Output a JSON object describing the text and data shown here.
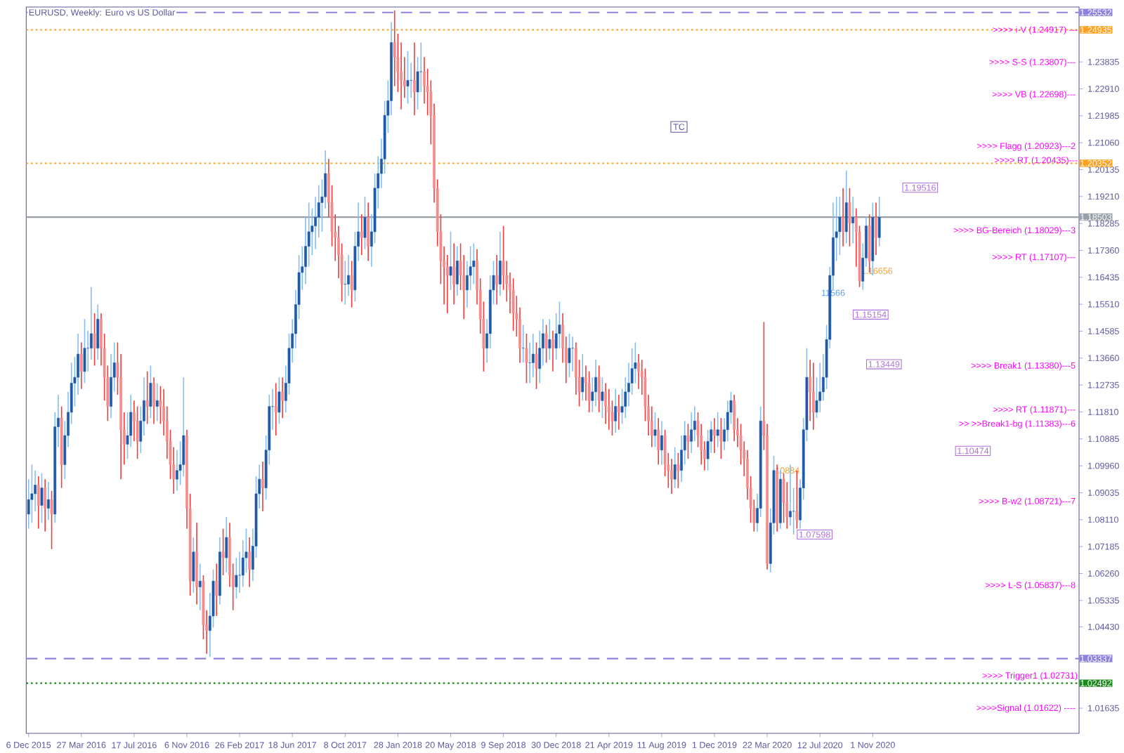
{
  "chart_data": {
    "type": "candlestick",
    "title": "EURUSD, Weekly:  Euro vs US Dollar",
    "xlim": [
      "2015-12-01",
      "2022-01-13"
    ],
    "ylim": [
      1.0077,
      1.2572
    ],
    "xticks": [
      {
        "value": "2015-12-06",
        "label": "6 Dec 2015"
      },
      {
        "value": "2016-03-27",
        "label": "27 Mar 2016"
      },
      {
        "value": "2016-07-17",
        "label": "17 Jul 2016"
      },
      {
        "value": "2016-11-06",
        "label": "6 Nov 2016"
      },
      {
        "value": "2017-02-26",
        "label": "26 Feb 2017"
      },
      {
        "value": "2017-06-18",
        "label": "18 Jun 2017"
      },
      {
        "value": "2017-10-08",
        "label": "8 Oct 2017"
      },
      {
        "value": "2018-01-28",
        "label": "28 Jan 2018"
      },
      {
        "value": "2018-05-20",
        "label": "20 May 2018"
      },
      {
        "value": "2018-09-09",
        "label": "9 Sep 2018"
      },
      {
        "value": "2018-12-30",
        "label": "30 Dec 2018"
      },
      {
        "value": "2019-04-21",
        "label": "21 Apr 2019"
      },
      {
        "value": "2019-08-11",
        "label": "11 Aug 2019"
      },
      {
        "value": "2019-12-01",
        "label": "1 Dec 2019"
      },
      {
        "value": "2020-03-22",
        "label": "22 Mar 2020"
      },
      {
        "value": "2020-07-12",
        "label": "12 Jul 2020"
      },
      {
        "value": "2020-11-01",
        "label": "1 Nov 2020"
      }
    ],
    "yticks": [
      {
        "value": 1.01635,
        "label": "1.01635"
      },
      {
        "value": 1.0443,
        "label": "1.04430"
      },
      {
        "value": 1.05335,
        "label": "1.05335"
      },
      {
        "value": 1.0626,
        "label": "1.06260"
      },
      {
        "value": 1.07185,
        "label": "1.07185"
      },
      {
        "value": 1.0811,
        "label": "1.08110"
      },
      {
        "value": 1.09035,
        "label": "1.09035"
      },
      {
        "value": 1.0996,
        "label": "1.09960"
      },
      {
        "value": 1.10885,
        "label": "1.10885"
      },
      {
        "value": 1.1181,
        "label": "1.11810"
      },
      {
        "value": 1.12735,
        "label": "1.12735"
      },
      {
        "value": 1.1366,
        "label": "1.13660"
      },
      {
        "value": 1.14585,
        "label": "1.14585"
      },
      {
        "value": 1.1551,
        "label": "1.15510"
      },
      {
        "value": 1.16435,
        "label": "1.16435"
      },
      {
        "value": 1.1736,
        "label": "1.17360"
      },
      {
        "value": 1.18285,
        "label": "1.18285"
      },
      {
        "value": 1.1921,
        "label": "1.19210"
      },
      {
        "value": 1.20135,
        "label": "1.20135"
      },
      {
        "value": 1.2106,
        "label": "1.21060"
      },
      {
        "value": 1.21985,
        "label": "1.21985"
      },
      {
        "value": 1.2291,
        "label": "1.22910"
      },
      {
        "value": 1.23835,
        "label": "1.23835"
      }
    ],
    "ref_lines": [
      {
        "axis": "y",
        "value": 1.25532,
        "label": "1.25532",
        "color": "#8c82dc",
        "line_style": "dashed"
      },
      {
        "axis": "y",
        "value": 1.24935,
        "label": "1.24935",
        "color": "#ffa020",
        "line_style": "dotted"
      },
      {
        "axis": "y",
        "value": 1.20352,
        "label": "1.20352",
        "color": "#ffa020",
        "line_style": "dotted"
      },
      {
        "axis": "y",
        "value": 1.18503,
        "label": "1.18503",
        "color": "#98a0a8",
        "line_style": "solid"
      },
      {
        "axis": "y",
        "value": 1.03337,
        "label": "1.03337",
        "color": "#8c82dc",
        "line_style": "dashed"
      },
      {
        "axis": "y",
        "value": 1.02492,
        "label": "1.02492",
        "color": "#1a8a1a",
        "line_style": "dotted"
      }
    ],
    "annotations": [
      "TC",
      {
        "text": ">>>> i-V (1.24917) ---",
        "y": 1.24917
      },
      ">>>> S-S (1.23807)---",
      ">>>> VB (1.22698)---",
      ">>>> Flagg (1.20923)---2",
      ">>>> BG-Bereich (1.18029)---3",
      ">>>> RT (1.17107)---",
      ">>>> Break1 (1.13380)---5",
      ">>>> RT (1.11871)---",
      ">> >>Break1-bg (1.11383)---6",
      ">>>> B-w2 (1.08721)---7",
      ">>>> L-S (1.05837)---8",
      ">>>>Signal (1.01622) ----",
      "1.19516",
      "1.15154",
      "1.10474",
      "1.07598",
      "1.13449",
      "11566",
      {
        "text": ">>>> RT (1.20435)---",
        "y": 1.20435
      },
      {
        "text": ">>>> Trigger1 (1.02731)",
        "y": 1.02731
      },
      {
        "text": "1.16656",
        "x": "2020-10-04",
        "y": 1.16656
      },
      {
        "text": "10884",
        "x": "2020-04-05",
        "y": 1.098
      }
    ],
    "x": [
      "2015-12-06",
      "2015-12-13",
      "2015-12-20",
      "2015-12-27",
      "2016-01-03",
      "2016-01-10",
      "2016-01-17",
      "2016-01-24",
      "2016-01-31",
      "2016-02-07",
      "2016-02-14",
      "2016-02-21",
      "2016-02-28",
      "2016-03-06",
      "2016-03-13",
      "2016-03-20",
      "2016-03-27",
      "2016-04-03",
      "2016-04-10",
      "2016-04-17",
      "2016-04-24",
      "2016-05-01",
      "2016-05-08",
      "2016-05-15",
      "2016-05-22",
      "2016-05-29",
      "2016-06-05",
      "2016-06-12",
      "2016-06-19",
      "2016-06-26",
      "2016-07-03",
      "2016-07-10",
      "2016-07-17",
      "2016-07-24",
      "2016-07-31",
      "2016-08-07",
      "2016-08-14",
      "2016-08-21",
      "2016-08-28",
      "2016-09-04",
      "2016-09-11",
      "2016-09-18",
      "2016-09-25",
      "2016-10-02",
      "2016-10-09",
      "2016-10-16",
      "2016-10-23",
      "2016-10-30",
      "2016-11-06",
      "2016-11-13",
      "2016-11-20",
      "2016-11-27",
      "2016-12-04",
      "2016-12-11",
      "2016-12-18",
      "2016-12-25",
      "2017-01-01",
      "2017-01-08",
      "2017-01-15",
      "2017-01-22",
      "2017-01-29",
      "2017-02-05",
      "2017-02-12",
      "2017-02-19",
      "2017-02-26",
      "2017-03-05",
      "2017-03-12",
      "2017-03-19",
      "2017-03-26",
      "2017-04-02",
      "2017-04-09",
      "2017-04-16",
      "2017-04-23",
      "2017-04-30",
      "2017-05-07",
      "2017-05-14",
      "2017-05-21",
      "2017-05-28",
      "2017-06-04",
      "2017-06-11",
      "2017-06-18",
      "2017-06-25",
      "2017-07-02",
      "2017-07-09",
      "2017-07-16",
      "2017-07-23",
      "2017-07-30",
      "2017-08-06",
      "2017-08-13",
      "2017-08-20",
      "2017-08-27",
      "2017-09-03",
      "2017-09-10",
      "2017-09-17",
      "2017-09-24",
      "2017-10-01",
      "2017-10-08",
      "2017-10-15",
      "2017-10-22",
      "2017-10-29",
      "2017-11-05",
      "2017-11-12",
      "2017-11-19",
      "2017-11-26",
      "2017-12-03",
      "2017-12-10",
      "2017-12-17",
      "2017-12-24",
      "2017-12-31",
      "2018-01-07",
      "2018-01-14",
      "2018-01-21",
      "2018-01-28",
      "2018-02-04",
      "2018-02-11",
      "2018-02-18",
      "2018-02-25",
      "2018-03-04",
      "2018-03-11",
      "2018-03-18",
      "2018-03-25",
      "2018-04-01",
      "2018-04-08",
      "2018-04-15",
      "2018-04-22",
      "2018-04-29",
      "2018-05-06",
      "2018-05-13",
      "2018-05-20",
      "2018-05-27",
      "2018-06-03",
      "2018-06-10",
      "2018-06-17",
      "2018-06-24",
      "2018-07-01",
      "2018-07-08",
      "2018-07-15",
      "2018-07-22",
      "2018-07-29",
      "2018-08-05",
      "2018-08-12",
      "2018-08-19",
      "2018-08-26",
      "2018-09-02",
      "2018-09-09",
      "2018-09-16",
      "2018-09-23",
      "2018-09-30",
      "2018-10-07",
      "2018-10-14",
      "2018-10-21",
      "2018-10-28",
      "2018-11-04",
      "2018-11-11",
      "2018-11-18",
      "2018-11-25",
      "2018-12-02",
      "2018-12-09",
      "2018-12-16",
      "2018-12-23",
      "2018-12-30",
      "2019-01-06",
      "2019-01-13",
      "2019-01-20",
      "2019-01-27",
      "2019-02-03",
      "2019-02-10",
      "2019-02-17",
      "2019-02-24",
      "2019-03-03",
      "2019-03-10",
      "2019-03-17",
      "2019-03-24",
      "2019-03-31",
      "2019-04-07",
      "2019-04-14",
      "2019-04-21",
      "2019-04-28",
      "2019-05-05",
      "2019-05-12",
      "2019-05-19",
      "2019-05-26",
      "2019-06-02",
      "2019-06-09",
      "2019-06-16",
      "2019-06-23",
      "2019-06-30",
      "2019-07-07",
      "2019-07-14",
      "2019-07-21",
      "2019-07-28",
      "2019-08-04",
      "2019-08-11",
      "2019-08-18",
      "2019-08-25",
      "2019-09-01",
      "2019-09-08",
      "2019-09-15",
      "2019-09-22",
      "2019-09-29",
      "2019-10-06",
      "2019-10-13",
      "2019-10-20",
      "2019-10-27",
      "2019-11-03",
      "2019-11-10",
      "2019-11-17",
      "2019-11-24",
      "2019-12-01",
      "2019-12-08",
      "2019-12-15",
      "2019-12-22",
      "2019-12-29",
      "2020-01-05",
      "2020-01-12",
      "2020-01-19",
      "2020-01-26",
      "2020-02-02",
      "2020-02-09",
      "2020-02-16",
      "2020-02-23",
      "2020-03-01",
      "2020-03-08",
      "2020-03-15",
      "2020-03-22",
      "2020-03-29",
      "2020-04-05",
      "2020-04-12",
      "2020-04-19",
      "2020-04-26",
      "2020-05-03",
      "2020-05-10",
      "2020-05-17",
      "2020-05-24",
      "2020-05-31",
      "2020-06-07",
      "2020-06-14",
      "2020-06-21",
      "2020-06-28",
      "2020-07-05",
      "2020-07-12",
      "2020-07-19",
      "2020-07-26",
      "2020-08-02",
      "2020-08-09",
      "2020-08-16",
      "2020-08-23",
      "2020-08-30",
      "2020-09-06",
      "2020-09-13",
      "2020-09-20",
      "2020-09-27",
      "2020-10-04",
      "2020-10-11",
      "2020-10-18",
      "2020-10-25",
      "2020-11-01",
      "2020-11-08",
      "2020-11-15"
    ],
    "ohlc": [
      [
        1.083,
        1.095,
        1.078,
        1.088
      ],
      [
        1.088,
        1.1,
        1.08,
        1.09
      ],
      [
        1.09,
        1.098,
        1.084,
        1.093
      ],
      [
        1.093,
        1.096,
        1.078,
        1.086
      ],
      [
        1.086,
        1.097,
        1.08,
        1.092
      ],
      [
        1.092,
        1.095,
        1.077,
        1.085
      ],
      [
        1.085,
        1.094,
        1.081,
        1.088
      ],
      [
        1.088,
        1.091,
        1.071,
        1.083
      ],
      [
        1.083,
        1.118,
        1.08,
        1.113
      ],
      [
        1.113,
        1.124,
        1.106,
        1.116
      ],
      [
        1.116,
        1.12,
        1.092,
        1.1
      ],
      [
        1.1,
        1.115,
        1.095,
        1.11
      ],
      [
        1.11,
        1.125,
        1.106,
        1.118
      ],
      [
        1.118,
        1.135,
        1.114,
        1.128
      ],
      [
        1.128,
        1.137,
        1.12,
        1.13
      ],
      [
        1.13,
        1.145,
        1.124,
        1.138
      ],
      [
        1.138,
        1.142,
        1.126,
        1.132
      ],
      [
        1.132,
        1.15,
        1.128,
        1.14
      ],
      [
        1.14,
        1.146,
        1.132,
        1.14
      ],
      [
        1.14,
        1.161,
        1.136,
        1.145
      ],
      [
        1.145,
        1.152,
        1.134,
        1.14
      ],
      [
        1.14,
        1.155,
        1.136,
        1.15
      ],
      [
        1.15,
        1.152,
        1.134,
        1.14
      ],
      [
        1.14,
        1.145,
        1.122,
        1.13
      ],
      [
        1.13,
        1.134,
        1.115,
        1.12
      ],
      [
        1.12,
        1.138,
        1.116,
        1.13
      ],
      [
        1.13,
        1.142,
        1.125,
        1.135
      ],
      [
        1.135,
        1.142,
        1.124,
        1.13
      ],
      [
        1.13,
        1.138,
        1.095,
        1.112
      ],
      [
        1.112,
        1.118,
        1.1,
        1.107
      ],
      [
        1.107,
        1.118,
        1.102,
        1.11
      ],
      [
        1.11,
        1.124,
        1.106,
        1.118
      ],
      [
        1.118,
        1.122,
        1.108,
        1.115
      ],
      [
        1.115,
        1.12,
        1.102,
        1.108
      ],
      [
        1.108,
        1.12,
        1.104,
        1.115
      ],
      [
        1.115,
        1.13,
        1.11,
        1.122
      ],
      [
        1.122,
        1.132,
        1.114,
        1.12
      ],
      [
        1.12,
        1.134,
        1.116,
        1.128
      ],
      [
        1.128,
        1.13,
        1.114,
        1.12
      ],
      [
        1.12,
        1.128,
        1.115,
        1.122
      ],
      [
        1.122,
        1.127,
        1.114,
        1.12
      ],
      [
        1.12,
        1.126,
        1.11,
        1.115
      ],
      [
        1.115,
        1.12,
        1.102,
        1.108
      ],
      [
        1.108,
        1.112,
        1.095,
        1.1
      ],
      [
        1.1,
        1.106,
        1.09,
        1.095
      ],
      [
        1.095,
        1.105,
        1.091,
        1.098
      ],
      [
        1.098,
        1.108,
        1.093,
        1.1
      ],
      [
        1.1,
        1.13,
        1.096,
        1.11
      ],
      [
        1.11,
        1.112,
        1.078,
        1.085
      ],
      [
        1.085,
        1.09,
        1.055,
        1.06
      ],
      [
        1.06,
        1.075,
        1.056,
        1.07
      ],
      [
        1.07,
        1.08,
        1.052,
        1.058
      ],
      [
        1.058,
        1.066,
        1.05,
        1.06
      ],
      [
        1.06,
        1.062,
        1.04,
        1.045
      ],
      [
        1.045,
        1.05,
        1.035,
        1.043
      ],
      [
        1.043,
        1.056,
        1.034,
        1.048
      ],
      [
        1.048,
        1.064,
        1.044,
        1.06
      ],
      [
        1.06,
        1.066,
        1.048,
        1.055
      ],
      [
        1.055,
        1.075,
        1.052,
        1.07
      ],
      [
        1.07,
        1.078,
        1.062,
        1.068
      ],
      [
        1.068,
        1.082,
        1.063,
        1.075
      ],
      [
        1.075,
        1.08,
        1.058,
        1.062
      ],
      [
        1.062,
        1.066,
        1.05,
        1.058
      ],
      [
        1.058,
        1.068,
        1.054,
        1.062
      ],
      [
        1.062,
        1.07,
        1.056,
        1.062
      ],
      [
        1.062,
        1.074,
        1.058,
        1.068
      ],
      [
        1.068,
        1.078,
        1.063,
        1.07
      ],
      [
        1.07,
        1.075,
        1.058,
        1.064
      ],
      [
        1.064,
        1.078,
        1.06,
        1.072
      ],
      [
        1.072,
        1.096,
        1.068,
        1.09
      ],
      [
        1.09,
        1.1,
        1.085,
        1.095
      ],
      [
        1.095,
        1.101,
        1.084,
        1.092
      ],
      [
        1.092,
        1.11,
        1.088,
        1.105
      ],
      [
        1.105,
        1.124,
        1.1,
        1.12
      ],
      [
        1.12,
        1.126,
        1.112,
        1.12
      ],
      [
        1.12,
        1.128,
        1.11,
        1.118
      ],
      [
        1.118,
        1.13,
        1.114,
        1.125
      ],
      [
        1.125,
        1.13,
        1.116,
        1.122
      ],
      [
        1.122,
        1.134,
        1.118,
        1.128
      ],
      [
        1.128,
        1.145,
        1.124,
        1.14
      ],
      [
        1.14,
        1.15,
        1.135,
        1.145
      ],
      [
        1.145,
        1.16,
        1.14,
        1.155
      ],
      [
        1.155,
        1.172,
        1.15,
        1.166
      ],
      [
        1.166,
        1.175,
        1.16,
        1.168
      ],
      [
        1.168,
        1.185,
        1.162,
        1.175
      ],
      [
        1.175,
        1.19,
        1.168,
        1.18
      ],
      [
        1.18,
        1.188,
        1.172,
        1.182
      ],
      [
        1.182,
        1.192,
        1.174,
        1.185
      ],
      [
        1.185,
        1.196,
        1.178,
        1.19
      ],
      [
        1.19,
        1.198,
        1.18,
        1.192
      ],
      [
        1.192,
        1.208,
        1.188,
        1.2
      ],
      [
        1.2,
        1.205,
        1.185,
        1.19
      ],
      [
        1.19,
        1.196,
        1.175,
        1.18
      ],
      [
        1.18,
        1.186,
        1.17,
        1.178
      ],
      [
        1.178,
        1.182,
        1.164,
        1.172
      ],
      [
        1.172,
        1.176,
        1.156,
        1.162
      ],
      [
        1.162,
        1.17,
        1.155,
        1.162
      ],
      [
        1.162,
        1.172,
        1.158,
        1.165
      ],
      [
        1.165,
        1.17,
        1.154,
        1.16
      ],
      [
        1.16,
        1.18,
        1.156,
        1.175
      ],
      [
        1.175,
        1.19,
        1.17,
        1.18
      ],
      [
        1.18,
        1.186,
        1.172,
        1.178
      ],
      [
        1.178,
        1.192,
        1.174,
        1.185
      ],
      [
        1.185,
        1.19,
        1.17,
        1.175
      ],
      [
        1.175,
        1.186,
        1.168,
        1.18
      ],
      [
        1.18,
        1.2,
        1.176,
        1.195
      ],
      [
        1.195,
        1.206,
        1.188,
        1.2
      ],
      [
        1.2,
        1.212,
        1.195,
        1.205
      ],
      [
        1.205,
        1.225,
        1.2,
        1.22
      ],
      [
        1.22,
        1.232,
        1.214,
        1.225
      ],
      [
        1.225,
        1.252,
        1.22,
        1.245
      ],
      [
        1.245,
        1.256,
        1.23,
        1.24
      ],
      [
        1.24,
        1.248,
        1.228,
        1.235
      ],
      [
        1.235,
        1.245,
        1.222,
        1.232
      ],
      [
        1.232,
        1.24,
        1.226,
        1.23
      ],
      [
        1.23,
        1.242,
        1.224,
        1.232
      ],
      [
        1.232,
        1.238,
        1.226,
        1.232
      ],
      [
        1.232,
        1.245,
        1.22,
        1.228
      ],
      [
        1.228,
        1.24,
        1.222,
        1.235
      ],
      [
        1.235,
        1.245,
        1.228,
        1.235
      ],
      [
        1.235,
        1.24,
        1.224,
        1.23
      ],
      [
        1.23,
        1.236,
        1.22,
        1.228
      ],
      [
        1.228,
        1.232,
        1.21,
        1.22
      ],
      [
        1.22,
        1.224,
        1.19,
        1.195
      ],
      [
        1.195,
        1.198,
        1.175,
        1.18
      ],
      [
        1.18,
        1.186,
        1.162,
        1.17
      ],
      [
        1.17,
        1.175,
        1.155,
        1.168
      ],
      [
        1.168,
        1.172,
        1.152,
        1.165
      ],
      [
        1.165,
        1.18,
        1.16,
        1.168
      ],
      [
        1.168,
        1.176,
        1.155,
        1.162
      ],
      [
        1.162,
        1.175,
        1.158,
        1.17
      ],
      [
        1.17,
        1.176,
        1.16,
        1.165
      ],
      [
        1.165,
        1.172,
        1.15,
        1.16
      ],
      [
        1.16,
        1.17,
        1.154,
        1.165
      ],
      [
        1.165,
        1.175,
        1.16,
        1.168
      ],
      [
        1.168,
        1.176,
        1.162,
        1.17
      ],
      [
        1.17,
        1.174,
        1.155,
        1.16
      ],
      [
        1.16,
        1.164,
        1.145,
        1.15
      ],
      [
        1.15,
        1.156,
        1.132,
        1.14
      ],
      [
        1.14,
        1.15,
        1.135,
        1.145
      ],
      [
        1.145,
        1.165,
        1.14,
        1.16
      ],
      [
        1.16,
        1.17,
        1.155,
        1.165
      ],
      [
        1.165,
        1.172,
        1.155,
        1.162
      ],
      [
        1.162,
        1.18,
        1.158,
        1.17
      ],
      [
        1.17,
        1.182,
        1.16,
        1.165
      ],
      [
        1.165,
        1.17,
        1.156,
        1.162
      ],
      [
        1.162,
        1.166,
        1.152,
        1.16
      ],
      [
        1.16,
        1.164,
        1.146,
        1.152
      ],
      [
        1.152,
        1.158,
        1.144,
        1.15
      ],
      [
        1.15,
        1.154,
        1.135,
        1.14
      ],
      [
        1.14,
        1.148,
        1.135,
        1.14
      ],
      [
        1.14,
        1.145,
        1.128,
        1.135
      ],
      [
        1.135,
        1.142,
        1.128,
        1.135
      ],
      [
        1.135,
        1.145,
        1.13,
        1.138
      ],
      [
        1.138,
        1.142,
        1.126,
        1.133
      ],
      [
        1.133,
        1.146,
        1.128,
        1.14
      ],
      [
        1.14,
        1.15,
        1.134,
        1.145
      ],
      [
        1.145,
        1.148,
        1.135,
        1.14
      ],
      [
        1.14,
        1.15,
        1.136,
        1.143
      ],
      [
        1.143,
        1.146,
        1.132,
        1.14
      ],
      [
        1.14,
        1.152,
        1.136,
        1.145
      ],
      [
        1.145,
        1.156,
        1.14,
        1.148
      ],
      [
        1.148,
        1.152,
        1.135,
        1.14
      ],
      [
        1.14,
        1.144,
        1.128,
        1.135
      ],
      [
        1.135,
        1.145,
        1.13,
        1.14
      ],
      [
        1.14,
        1.144,
        1.132,
        1.14
      ],
      [
        1.14,
        1.142,
        1.124,
        1.13
      ],
      [
        1.13,
        1.136,
        1.12,
        1.125
      ],
      [
        1.125,
        1.138,
        1.122,
        1.13
      ],
      [
        1.13,
        1.134,
        1.122,
        1.128
      ],
      [
        1.128,
        1.132,
        1.118,
        1.122
      ],
      [
        1.122,
        1.13,
        1.118,
        1.125
      ],
      [
        1.125,
        1.136,
        1.12,
        1.13
      ],
      [
        1.13,
        1.134,
        1.118,
        1.122
      ],
      [
        1.122,
        1.13,
        1.116,
        1.125
      ],
      [
        1.125,
        1.128,
        1.114,
        1.12
      ],
      [
        1.12,
        1.126,
        1.112,
        1.118
      ],
      [
        1.118,
        1.122,
        1.11,
        1.115
      ],
      [
        1.115,
        1.126,
        1.111,
        1.12
      ],
      [
        1.12,
        1.124,
        1.112,
        1.118
      ],
      [
        1.118,
        1.126,
        1.114,
        1.12
      ],
      [
        1.12,
        1.13,
        1.116,
        1.125
      ],
      [
        1.125,
        1.135,
        1.12,
        1.128
      ],
      [
        1.128,
        1.14,
        1.124,
        1.133
      ],
      [
        1.133,
        1.142,
        1.128,
        1.135
      ],
      [
        1.135,
        1.138,
        1.126,
        1.132
      ],
      [
        1.132,
        1.136,
        1.124,
        1.13
      ],
      [
        1.13,
        1.133,
        1.115,
        1.12
      ],
      [
        1.12,
        1.124,
        1.11,
        1.115
      ],
      [
        1.115,
        1.12,
        1.106,
        1.11
      ],
      [
        1.11,
        1.118,
        1.106,
        1.112
      ],
      [
        1.112,
        1.116,
        1.1,
        1.105
      ],
      [
        1.105,
        1.115,
        1.1,
        1.11
      ],
      [
        1.11,
        1.112,
        1.096,
        1.1
      ],
      [
        1.1,
        1.104,
        1.092,
        1.098
      ],
      [
        1.098,
        1.102,
        1.09,
        1.095
      ],
      [
        1.095,
        1.106,
        1.092,
        1.1
      ],
      [
        1.1,
        1.104,
        1.092,
        1.098
      ],
      [
        1.098,
        1.11,
        1.094,
        1.105
      ],
      [
        1.105,
        1.115,
        1.1,
        1.11
      ],
      [
        1.11,
        1.114,
        1.102,
        1.108
      ],
      [
        1.108,
        1.118,
        1.104,
        1.112
      ],
      [
        1.112,
        1.12,
        1.108,
        1.115
      ],
      [
        1.115,
        1.118,
        1.106,
        1.11
      ],
      [
        1.11,
        1.114,
        1.1,
        1.105
      ],
      [
        1.105,
        1.108,
        1.098,
        1.102
      ],
      [
        1.102,
        1.112,
        1.098,
        1.108
      ],
      [
        1.108,
        1.115,
        1.104,
        1.112
      ],
      [
        1.112,
        1.116,
        1.104,
        1.11
      ],
      [
        1.11,
        1.118,
        1.106,
        1.112
      ],
      [
        1.112,
        1.116,
        1.102,
        1.108
      ],
      [
        1.108,
        1.116,
        1.105,
        1.112
      ],
      [
        1.112,
        1.122,
        1.108,
        1.118
      ],
      [
        1.118,
        1.125,
        1.114,
        1.122
      ],
      [
        1.122,
        1.124,
        1.108,
        1.112
      ],
      [
        1.112,
        1.116,
        1.106,
        1.11
      ],
      [
        1.11,
        1.114,
        1.1,
        1.105
      ],
      [
        1.105,
        1.108,
        1.096,
        1.102
      ],
      [
        1.102,
        1.105,
        1.088,
        1.092
      ],
      [
        1.092,
        1.096,
        1.08,
        1.085
      ],
      [
        1.085,
        1.088,
        1.077,
        1.08
      ],
      [
        1.08,
        1.09,
        1.077,
        1.085
      ],
      [
        1.085,
        1.12,
        1.082,
        1.115
      ],
      [
        1.115,
        1.149,
        1.105,
        1.11
      ],
      [
        1.11,
        1.114,
        1.064,
        1.066
      ],
      [
        1.066,
        1.085,
        1.063,
        1.08
      ],
      [
        1.08,
        1.103,
        1.076,
        1.098
      ],
      [
        1.098,
        1.1,
        1.077,
        1.08
      ],
      [
        1.08,
        1.098,
        1.078,
        1.095
      ],
      [
        1.095,
        1.097,
        1.08,
        1.087
      ],
      [
        1.087,
        1.094,
        1.078,
        1.082
      ],
      [
        1.082,
        1.1,
        1.079,
        1.084
      ],
      [
        1.084,
        1.092,
        1.076,
        1.084
      ],
      [
        1.084,
        1.098,
        1.078,
        1.081
      ],
      [
        1.081,
        1.095,
        1.078,
        1.092
      ],
      [
        1.092,
        1.116,
        1.088,
        1.112
      ],
      [
        1.112,
        1.14,
        1.108,
        1.13
      ],
      [
        1.13,
        1.136,
        1.115,
        1.125
      ],
      [
        1.125,
        1.135,
        1.112,
        1.118
      ],
      [
        1.118,
        1.13,
        1.116,
        1.122
      ],
      [
        1.122,
        1.135,
        1.118,
        1.125
      ],
      [
        1.125,
        1.138,
        1.122,
        1.13
      ],
      [
        1.13,
        1.148,
        1.126,
        1.143
      ],
      [
        1.143,
        1.168,
        1.14,
        1.165
      ],
      [
        1.165,
        1.19,
        1.16,
        1.178
      ],
      [
        1.178,
        1.192,
        1.17,
        1.18
      ],
      [
        1.18,
        1.192,
        1.172,
        1.185
      ],
      [
        1.185,
        1.195,
        1.175,
        1.18
      ],
      [
        1.18,
        1.201,
        1.176,
        1.19
      ],
      [
        1.19,
        1.195,
        1.175,
        1.183
      ],
      [
        1.183,
        1.192,
        1.176,
        1.185
      ],
      [
        1.185,
        1.188,
        1.168,
        1.18
      ],
      [
        1.18,
        1.182,
        1.161,
        1.163
      ],
      [
        1.163,
        1.176,
        1.16,
        1.171
      ],
      [
        1.171,
        1.185,
        1.168,
        1.182
      ],
      [
        1.182,
        1.186,
        1.166,
        1.17
      ],
      [
        1.17,
        1.19,
        1.165,
        1.185
      ],
      [
        1.185,
        1.19,
        1.172,
        1.178
      ],
      [
        1.178,
        1.192,
        1.175,
        1.185
      ]
    ]
  }
}
